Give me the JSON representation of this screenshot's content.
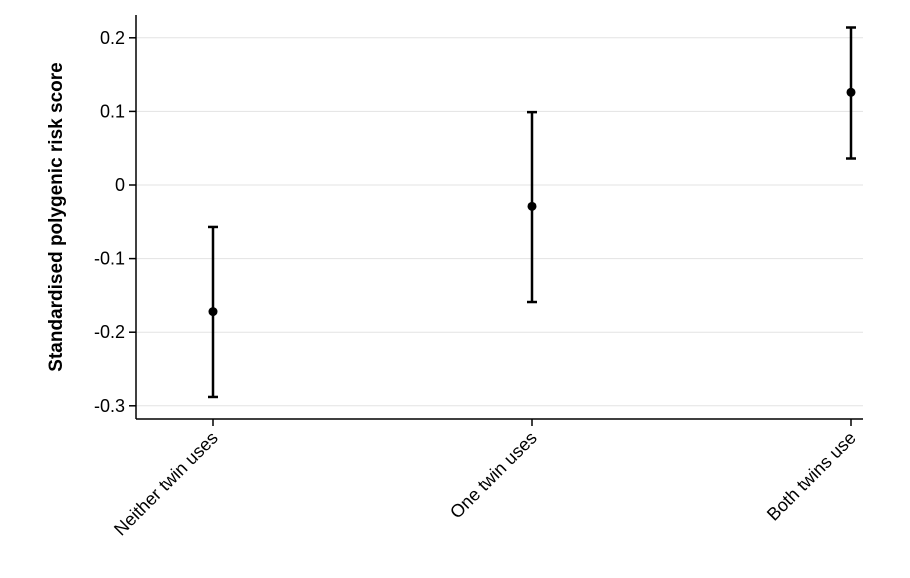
{
  "chart_data": {
    "type": "scatter",
    "title": "",
    "xlabel": "",
    "ylabel": "Standardised polygenic risk score",
    "categories": [
      "Neither twin uses",
      "One twin uses",
      "Both twins use"
    ],
    "points": [
      {
        "category": "Neither twin uses",
        "value": -0.172,
        "ci_lower": -0.288,
        "ci_upper": -0.057
      },
      {
        "category": "One twin uses",
        "value": -0.029,
        "ci_lower": -0.159,
        "ci_upper": 0.099
      },
      {
        "category": "Both twins use",
        "value": 0.126,
        "ci_lower": 0.036,
        "ci_upper": 0.214
      }
    ],
    "yticks": [
      0.2,
      0.1,
      0,
      -0.1,
      -0.2,
      -0.3
    ],
    "ytick_labels": [
      "0.2",
      "0.1",
      "0",
      "-0.1",
      "-0.2",
      "-0.3"
    ],
    "ylim": [
      -0.318,
      0.23
    ],
    "grid": true,
    "colors": {
      "marker": "#000000",
      "grid": "#e3e3e3",
      "axis": "#000000"
    }
  }
}
